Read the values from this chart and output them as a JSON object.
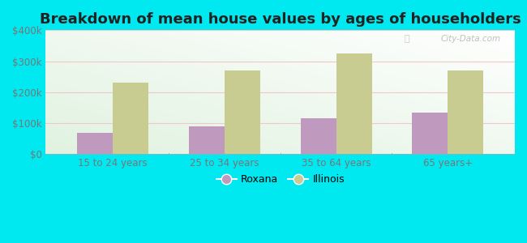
{
  "title": "Breakdown of mean house values by ages of householders",
  "categories": [
    "15 to 24 years",
    "25 to 34 years",
    "35 to 64 years",
    "65 years+"
  ],
  "roxana_values": [
    68000,
    90000,
    115000,
    135000
  ],
  "illinois_values": [
    230000,
    270000,
    325000,
    270000
  ],
  "roxana_color": "#c09abe",
  "illinois_color": "#c8cc90",
  "bg_color": "#00e8f0",
  "ylim": [
    0,
    400000
  ],
  "yticks": [
    0,
    100000,
    200000,
    300000,
    400000
  ],
  "ytick_labels": [
    "$0",
    "$100k",
    "$200k",
    "$300k",
    "$400k"
  ],
  "bar_width": 0.32,
  "legend_roxana": "Roxana",
  "legend_illinois": "Illinois",
  "title_fontsize": 13,
  "tick_fontsize": 8.5,
  "legend_fontsize": 9,
  "watermark": "City-Data.com"
}
